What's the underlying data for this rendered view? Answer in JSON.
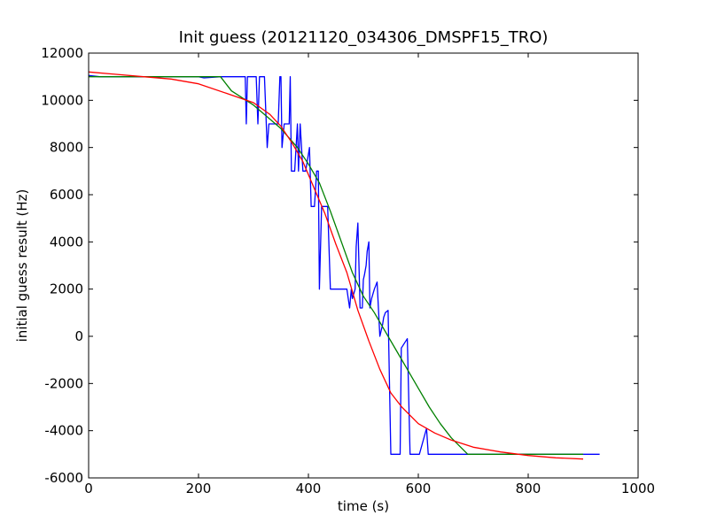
{
  "chart_data": {
    "type": "line",
    "title": "Init guess (20121120_034306_DMSPF15_TRO)",
    "xlabel": "time (s)",
    "ylabel": "initial guess result (Hz)",
    "xlim": [
      0,
      1000
    ],
    "ylim": [
      -6000,
      12000
    ],
    "xticks": [
      0,
      200,
      400,
      600,
      800,
      1000
    ],
    "yticks": [
      -6000,
      -4000,
      -2000,
      0,
      2000,
      4000,
      6000,
      8000,
      10000,
      12000
    ],
    "grid": false,
    "legend": "none",
    "series": [
      {
        "color": "#0000ff",
        "x": [
          0,
          20,
          200,
          210,
          240,
          285,
          287,
          289,
          300,
          305,
          308,
          311,
          320,
          325,
          328,
          331,
          345,
          348,
          350,
          352,
          356,
          365,
          367,
          369,
          375,
          380,
          382,
          385,
          390,
          395,
          402,
          405,
          407,
          411,
          415,
          418,
          420,
          424,
          427,
          429,
          431,
          435,
          440,
          450,
          453,
          455,
          460,
          470,
          475,
          478,
          480,
          485,
          487,
          490,
          494,
          498,
          500,
          502,
          505,
          507,
          510,
          512,
          515,
          520,
          525,
          530,
          535,
          537,
          540,
          545,
          550,
          555,
          560,
          565,
          567,
          569,
          580,
          585,
          588,
          590,
          593,
          595,
          598,
          600,
          602,
          615,
          618,
          620,
          622,
          625,
          660,
          665,
          670,
          690,
          930
        ],
        "y": [
          11050,
          11000,
          11000,
          10950,
          11000,
          11000,
          9000,
          11000,
          11000,
          11000,
          9000,
          11000,
          11000,
          8000,
          9000,
          9000,
          9000,
          11000,
          11000,
          8000,
          9000,
          9000,
          11000,
          7000,
          7000,
          9000,
          7000,
          9000,
          7000,
          7000,
          8000,
          5500,
          5500,
          5500,
          7000,
          7000,
          2000,
          5500,
          5500,
          5500,
          5500,
          5500,
          2000,
          2000,
          2000,
          2000,
          2000,
          2000,
          1200,
          2000,
          1600,
          2000,
          3800,
          4800,
          1200,
          1200,
          2400,
          2600,
          3000,
          3600,
          4000,
          1200,
          1600,
          2000,
          2300,
          0,
          500,
          800,
          1000,
          1100,
          -5000,
          -5000,
          -5000,
          -5000,
          -5000,
          -500,
          -100,
          -5000,
          -5000,
          -5000,
          -5000,
          -5000,
          -5000,
          -5000,
          -5000,
          -3900,
          -5000,
          -5000,
          -5000,
          -5000,
          -5000,
          -5000,
          -5000,
          -5000,
          -5000
        ]
      },
      {
        "color": "#008000",
        "x": [
          0,
          30,
          100,
          150,
          200,
          240,
          260,
          300,
          350,
          380,
          400,
          420,
          440,
          460,
          480,
          500,
          520,
          540,
          560,
          580,
          600,
          620,
          640,
          660,
          690,
          700,
          750,
          800,
          850,
          900
        ],
        "y": [
          11000,
          11000,
          11000,
          11000,
          11000,
          11000,
          10400,
          9800,
          8800,
          8000,
          7300,
          6500,
          5300,
          4000,
          2700,
          1700,
          1000,
          200,
          -600,
          -1400,
          -2200,
          -3000,
          -3700,
          -4300,
          -5000,
          -5000,
          -5000,
          -5000,
          -5000,
          -5000
        ]
      },
      {
        "color": "#ff0000",
        "x": [
          0,
          50,
          100,
          150,
          200,
          250,
          300,
          330,
          350,
          370,
          390,
          410,
          430,
          450,
          470,
          490,
          510,
          530,
          550,
          570,
          600,
          630,
          660,
          700,
          750,
          800,
          850,
          900
        ],
        "y": [
          11200,
          11100,
          11000,
          10900,
          10700,
          10300,
          9900,
          9400,
          8900,
          8200,
          7400,
          6300,
          5200,
          3900,
          2700,
          1100,
          -200,
          -1400,
          -2400,
          -3000,
          -3700,
          -4100,
          -4400,
          -4700,
          -4900,
          -5050,
          -5150,
          -5200
        ]
      }
    ]
  }
}
